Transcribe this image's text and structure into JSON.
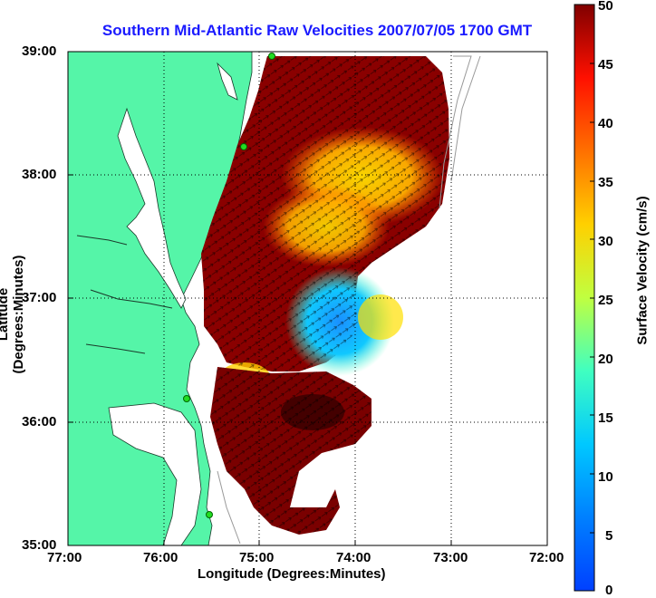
{
  "title": "Southern Mid-Atlantic Raw Velocities 2007/07/05 1700 GMT",
  "xlabel": "Longitude (Degrees:Minutes)",
  "ylabel": "Latitude (Degrees:Minutes)",
  "colorbar_label": "Surface Velocity (cm/s)",
  "x_ticks": [
    "77:00",
    "76:00",
    "75:00",
    "74:00",
    "73:00",
    "72:00"
  ],
  "y_ticks": [
    "39:00",
    "38:00",
    "37:00",
    "36:00",
    "35:00"
  ],
  "colorbar_ticks": [
    "50",
    "45",
    "40",
    "35",
    "30",
    "25",
    "20",
    "15",
    "10",
    "5",
    "0"
  ],
  "map": {
    "lon_range": [
      -77,
      -72
    ],
    "lat_range": [
      35,
      39
    ],
    "land_color": "#55f5a8",
    "water_color": "#ffffff",
    "grid": "dotted",
    "colormap": "jet",
    "velocity_range_cm_s": [
      0,
      50
    ],
    "station_marker_color": "#22dd22"
  }
}
